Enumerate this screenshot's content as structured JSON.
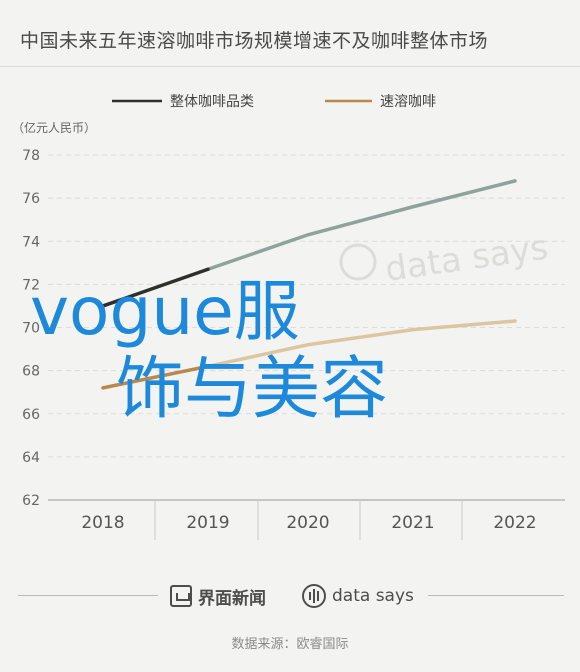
{
  "title": "中国未来五年速溶咖啡市场规模增速不及咖啡整体市场",
  "footer": {
    "brand_jiemian": "界面新闻",
    "brand_datasays": "data says",
    "source": "数据来源：欧睿国际"
  },
  "watermark": "data says",
  "overlay": {
    "line1": "vogue服",
    "line2": "饰与美容"
  },
  "colors": {
    "background": "#f3f3f1",
    "series_total": "#2f2f2a",
    "series_instant": "#b8884f",
    "projection": "#8fa29e",
    "overlay": "#1c89db"
  },
  "chart_data": {
    "type": "line",
    "unit_label": "（亿元人民币）",
    "x": [
      2018,
      2019,
      2020,
      2021,
      2022
    ],
    "ylim": [
      62,
      78
    ],
    "yticks": [
      62,
      64,
      66,
      68,
      70,
      72,
      74,
      76,
      78
    ],
    "grid": true,
    "legend_position": "top",
    "series": [
      {
        "name": "整体咖啡品类",
        "values": [
          71.0,
          72.7,
          74.3,
          75.6,
          76.8
        ]
      },
      {
        "name": "速溶咖啡",
        "values": [
          67.2,
          68.2,
          69.2,
          69.9,
          70.3
        ]
      }
    ]
  }
}
